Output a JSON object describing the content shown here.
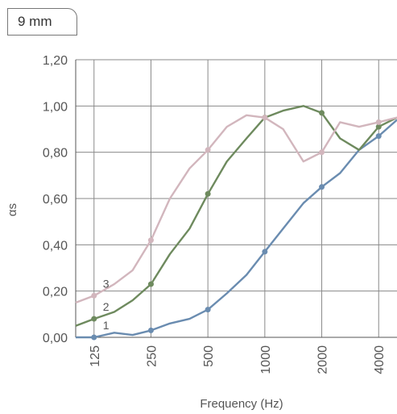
{
  "tag_label": "9 mm",
  "chart_data": {
    "type": "line",
    "title": "",
    "xlabel": "Frequency (Hz)",
    "ylabel": "αs",
    "x_scale": "log",
    "x_range": [
      100,
      5000
    ],
    "ylim": [
      0,
      1.2
    ],
    "yticks": [
      "0,00",
      "0,20",
      "0,40",
      "0,60",
      "0,80",
      "1,00",
      "1,20"
    ],
    "xticks": [
      {
        "value": 125,
        "label": "125"
      },
      {
        "value": 250,
        "label": "250"
      },
      {
        "value": 500,
        "label": "500"
      },
      {
        "value": 1000,
        "label": "1000"
      },
      {
        "value": 2000,
        "label": "2000"
      },
      {
        "value": 4000,
        "label": "4000"
      }
    ],
    "gridlines_x": [
      125,
      250,
      500,
      1000,
      2000,
      4000
    ],
    "grid": true,
    "series": [
      {
        "name": "1",
        "color": "#6a8cb0",
        "x": [
          100,
          125,
          160,
          200,
          250,
          315,
          400,
          500,
          630,
          800,
          1000,
          1250,
          1600,
          2000,
          2500,
          3150,
          4000,
          5000
        ],
        "values": [
          0.0,
          0.0,
          0.02,
          0.01,
          0.03,
          0.06,
          0.08,
          0.12,
          0.19,
          0.27,
          0.37,
          0.47,
          0.58,
          0.65,
          0.71,
          0.81,
          0.87,
          0.94
        ],
        "markers_at": [
          125,
          250,
          500,
          1000,
          2000,
          4000
        ]
      },
      {
        "name": "2",
        "color": "#6e8a5e",
        "x": [
          100,
          125,
          160,
          200,
          250,
          315,
          400,
          500,
          630,
          800,
          1000,
          1250,
          1600,
          2000,
          2500,
          3150,
          4000,
          5000
        ],
        "values": [
          0.05,
          0.08,
          0.11,
          0.16,
          0.23,
          0.36,
          0.47,
          0.62,
          0.76,
          0.86,
          0.95,
          0.98,
          1.0,
          0.97,
          0.86,
          0.81,
          0.91,
          0.95
        ],
        "markers_at": [
          125,
          250,
          500,
          1000,
          2000,
          4000
        ]
      },
      {
        "name": "3",
        "color": "#d2b6bd",
        "x": [
          100,
          125,
          160,
          200,
          250,
          315,
          400,
          500,
          630,
          800,
          1000,
          1250,
          1600,
          2000,
          2500,
          3150,
          4000,
          5000
        ],
        "values": [
          0.15,
          0.18,
          0.23,
          0.29,
          0.42,
          0.6,
          0.73,
          0.81,
          0.91,
          0.96,
          0.95,
          0.9,
          0.76,
          0.8,
          0.93,
          0.91,
          0.93,
          0.95
        ],
        "markers_at": [
          125,
          250,
          500,
          1000,
          2000,
          4000
        ]
      }
    ]
  }
}
